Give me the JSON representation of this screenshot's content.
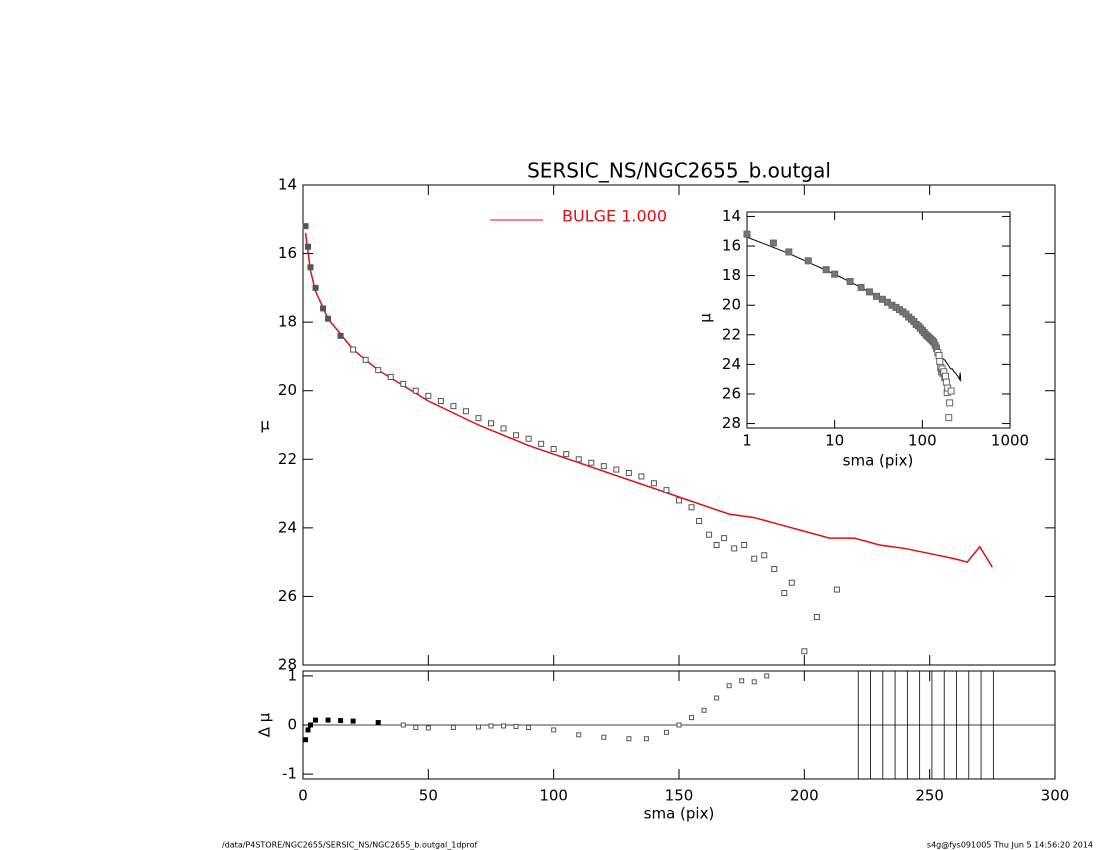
{
  "chart_data": [
    {
      "type": "scatter",
      "title": "SERSIC_NS/NGC2655_b.outgal",
      "ylabel": "μ",
      "xlim": [
        0,
        300
      ],
      "ylim": [
        14,
        28
      ],
      "yticks": [
        14,
        16,
        18,
        20,
        22,
        24,
        26,
        28
      ],
      "y_inverted": true,
      "points": {
        "color": "#555555",
        "x": [
          1,
          2,
          3,
          5,
          8,
          10,
          15,
          20,
          25,
          30,
          35,
          40,
          45,
          50,
          55,
          60,
          65,
          70,
          75,
          80,
          85,
          90,
          95,
          100,
          105,
          110,
          115,
          120,
          125,
          130,
          135,
          140,
          145,
          150,
          155,
          158,
          162,
          165,
          168,
          172,
          176,
          180,
          184,
          188,
          192,
          195,
          200,
          205,
          213
        ],
        "y": [
          15.2,
          15.8,
          16.4,
          17.0,
          17.6,
          17.9,
          18.4,
          18.8,
          19.1,
          19.4,
          19.6,
          19.8,
          20.0,
          20.15,
          20.3,
          20.45,
          20.6,
          20.8,
          20.95,
          21.1,
          21.3,
          21.4,
          21.55,
          21.7,
          21.85,
          22.0,
          22.1,
          22.2,
          22.3,
          22.4,
          22.5,
          22.7,
          22.9,
          23.2,
          23.4,
          23.8,
          24.2,
          24.5,
          24.3,
          24.6,
          24.5,
          24.9,
          24.8,
          25.2,
          25.9,
          25.6,
          27.6,
          26.6,
          25.8
        ]
      },
      "model": {
        "name": "BULGE  1.000",
        "color": "#dd1111",
        "x": [
          1,
          3,
          5,
          10,
          20,
          30,
          50,
          70,
          90,
          110,
          130,
          150,
          170,
          180,
          190,
          200,
          210,
          220,
          230,
          240,
          250,
          260,
          265,
          270,
          275
        ],
        "y": [
          15.4,
          16.5,
          17.1,
          17.9,
          18.8,
          19.4,
          20.3,
          21.0,
          21.6,
          22.1,
          22.6,
          23.1,
          23.6,
          23.7,
          23.9,
          24.1,
          24.3,
          24.3,
          24.5,
          24.6,
          24.75,
          24.9,
          25.0,
          24.55,
          25.15
        ]
      }
    },
    {
      "type": "scatter",
      "xlabel": "sma (pix)",
      "ylabel": "Δ μ",
      "xlim": [
        0,
        300
      ],
      "xticks": [
        0,
        50,
        100,
        150,
        200,
        250,
        300
      ],
      "ylim": [
        -1.1,
        1.1
      ],
      "yticks": [
        -1,
        0,
        1
      ],
      "x": [
        1,
        2,
        3,
        5,
        10,
        15,
        20,
        30,
        40,
        45,
        50,
        60,
        70,
        75,
        80,
        85,
        90,
        100,
        110,
        120,
        130,
        137,
        145,
        150,
        155,
        160,
        165,
        170,
        175,
        180,
        185
      ],
      "values": [
        -0.3,
        -0.1,
        0.0,
        0.1,
        0.1,
        0.09,
        0.08,
        0.05,
        0.0,
        -0.05,
        -0.06,
        -0.05,
        -0.04,
        -0.02,
        -0.02,
        -0.03,
        -0.05,
        -0.1,
        -0.2,
        -0.25,
        -0.28,
        -0.28,
        -0.15,
        0.0,
        0.15,
        0.3,
        0.55,
        0.8,
        0.9,
        0.88,
        1.0
      ],
      "clipped_x": [
        221.5,
        226.4,
        231.3,
        236.2,
        241.1,
        246.0,
        250.9,
        255.8,
        260.7,
        265.6,
        270.5,
        275.4
      ]
    },
    {
      "type": "scatter",
      "xlabel": "sma (pix)",
      "ylabel": "μ",
      "xlog": true,
      "xlim": [
        1,
        1000
      ],
      "xticks": [
        1,
        10,
        100,
        1000
      ],
      "ylim": [
        13.7,
        28.3
      ],
      "yticks": [
        14,
        16,
        18,
        20,
        22,
        24,
        26,
        28
      ]
    }
  ],
  "footer": {
    "left": "/data/P4STORE/NGC2655/SERSIC_NS/NGC2655_b.outgal_1dprof",
    "right": "s4g@fys091005  Thu Jun  5 14:56:20 2014"
  }
}
